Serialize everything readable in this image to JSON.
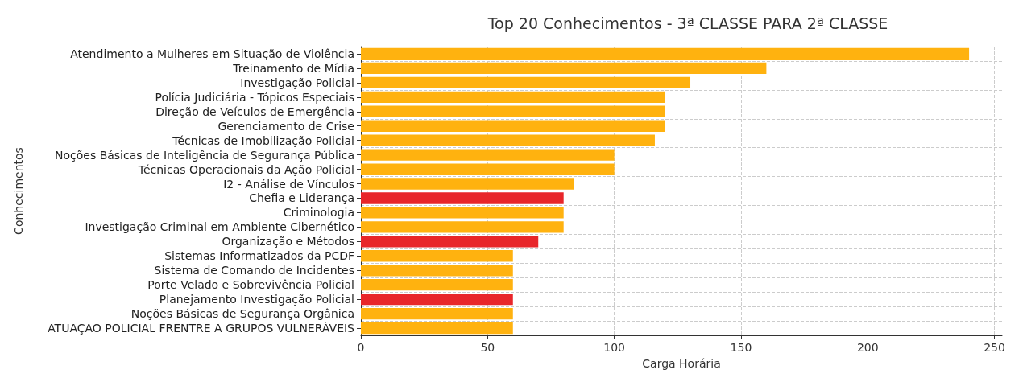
{
  "chart_data": {
    "type": "bar",
    "orientation": "horizontal",
    "title": "Top 20 Conhecimentos - 3ª CLASSE PARA 2ª CLASSE",
    "xlabel": "Carga Horária",
    "ylabel": "Conhecimentos",
    "categories": [
      "Atendimento a Mulheres em Situação de Violência",
      "Treinamento de Mídia",
      "Investigação Policial",
      "Polícia Judiciária - Tópicos Especiais",
      "Direção de Veículos de Emergência",
      "Gerenciamento de Crise",
      "Técnicas de Imobilização Policial",
      "Noções Básicas de Inteligência de Segurança Pública",
      "Técnicas Operacionais da Ação Policial",
      "I2 - Análise de Vínculos",
      "Chefia e Liderança",
      "Criminologia",
      "Investigação Criminal em Ambiente Cibernético",
      "Organização e Métodos",
      "Sistemas Informatizados da PCDF",
      "Sistema de Comando de Incidentes",
      "Porte Velado e Sobrevivência Policial",
      "Planejamento Investigação Policial",
      "Noções Básicas de Segurança Orgânica",
      "ATUAÇÃO POLICIAL FRENTRE A GRUPOS VULNERÁVEIS"
    ],
    "values": [
      240,
      160,
      130,
      120,
      120,
      120,
      116,
      100,
      100,
      84,
      80,
      80,
      80,
      70,
      60,
      60,
      60,
      60,
      60,
      60
    ],
    "colors": [
      "#ffb20f",
      "#ffb20f",
      "#ffb20f",
      "#ffb20f",
      "#ffb20f",
      "#ffb20f",
      "#ffb20f",
      "#ffb20f",
      "#ffb20f",
      "#ffb20f",
      "#e8262a",
      "#ffb20f",
      "#ffb20f",
      "#e8262a",
      "#ffb20f",
      "#ffb20f",
      "#ffb20f",
      "#e8262a",
      "#ffb20f",
      "#ffb20f"
    ],
    "xlim": [
      0,
      253
    ],
    "xticks": [
      0,
      50,
      100,
      150,
      200,
      250
    ],
    "grid": true
  }
}
